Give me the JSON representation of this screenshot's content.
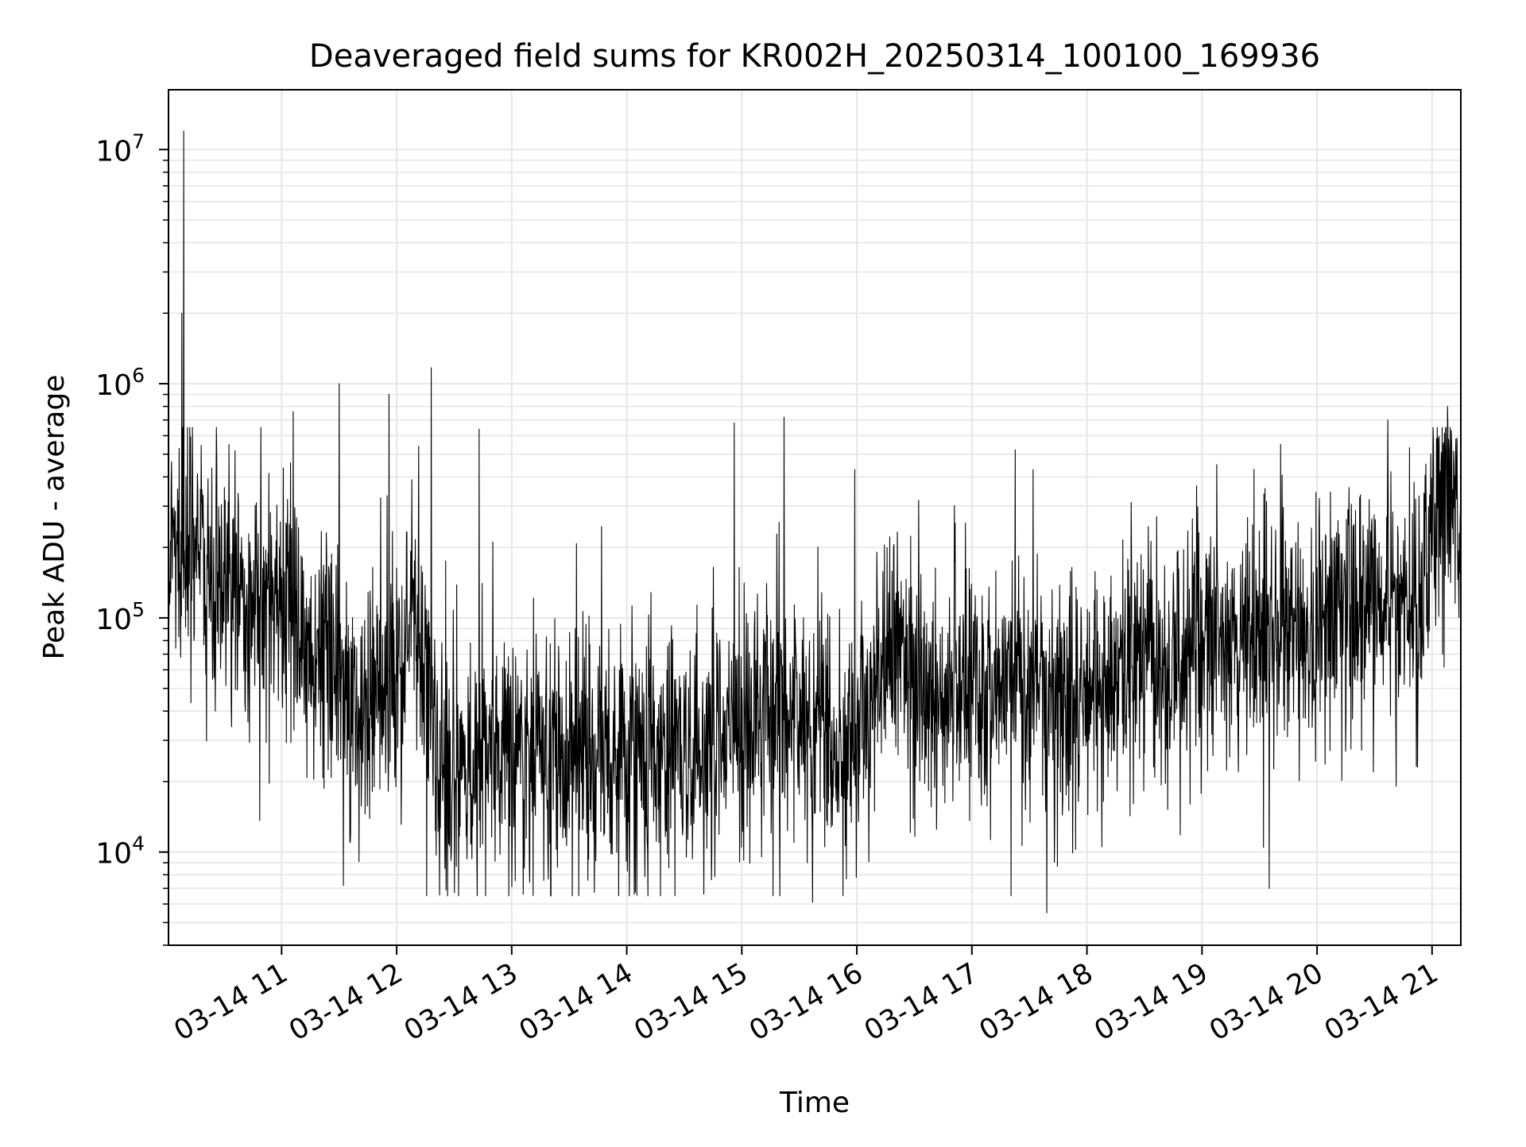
{
  "chart_data": {
    "type": "line",
    "title": "Deaveraged field sums for KR002H_20250314_100100_169936",
    "xlabel": "Time",
    "ylabel": "Peak ADU - average",
    "yscale": "log",
    "ylim": [
      4000,
      18000000
    ],
    "xlim": [
      "03-14 10:01",
      "03-14 21:15"
    ],
    "grid": true,
    "line_color": "#000000",
    "grid_color": "#e6e6e6",
    "x_ticks": [
      {
        "t": "03-14 11:00",
        "label": "03-14 11"
      },
      {
        "t": "03-14 12:00",
        "label": "03-14 12"
      },
      {
        "t": "03-14 13:00",
        "label": "03-14 13"
      },
      {
        "t": "03-14 14:00",
        "label": "03-14 14"
      },
      {
        "t": "03-14 15:00",
        "label": "03-14 15"
      },
      {
        "t": "03-14 16:00",
        "label": "03-14 16"
      },
      {
        "t": "03-14 17:00",
        "label": "03-14 17"
      },
      {
        "t": "03-14 18:00",
        "label": "03-14 18"
      },
      {
        "t": "03-14 19:00",
        "label": "03-14 19"
      },
      {
        "t": "03-14 20:00",
        "label": "03-14 20"
      },
      {
        "t": "03-14 21:00",
        "label": "03-14 21"
      }
    ],
    "y_ticks": [
      {
        "value": 10000,
        "base": "10",
        "exp": "4"
      },
      {
        "value": 100000,
        "base": "10",
        "exp": "5"
      },
      {
        "value": 1000000,
        "base": "10",
        "exp": "6"
      },
      {
        "value": 10000000,
        "base": "10",
        "exp": "7"
      }
    ],
    "baseline_series": {
      "x": [
        "03-14 10:01",
        "03-14 10:20",
        "03-14 10:40",
        "03-14 11:00",
        "03-14 11:20",
        "03-14 11:40",
        "03-14 12:00",
        "03-14 12:10",
        "03-14 12:20",
        "03-14 12:30",
        "03-14 13:00",
        "03-14 13:30",
        "03-14 14:00",
        "03-14 14:30",
        "03-14 15:00",
        "03-14 15:30",
        "03-14 16:00",
        "03-14 16:20",
        "03-14 16:40",
        "03-14 17:00",
        "03-14 17:30",
        "03-14 18:00",
        "03-14 18:30",
        "03-14 19:00",
        "03-14 19:30",
        "03-14 20:00",
        "03-14 20:30",
        "03-14 20:55",
        "03-14 21:00",
        "03-14 21:15"
      ],
      "y": [
        210000,
        160000,
        110000,
        100000,
        80000,
        40000,
        60000,
        110000,
        25000,
        25000,
        30000,
        25000,
        25000,
        28000,
        35000,
        35000,
        25000,
        80000,
        50000,
        45000,
        55000,
        50000,
        60000,
        70000,
        85000,
        100000,
        110000,
        110000,
        320000,
        330000
      ]
    },
    "spikes": [
      {
        "t": "03-14 10:09",
        "y": 12000000
      },
      {
        "t": "03-14 10:08",
        "y": 2000000
      },
      {
        "t": "03-14 11:56",
        "y": 900000
      },
      {
        "t": "03-14 11:06",
        "y": 760000
      },
      {
        "t": "03-14 11:30",
        "y": 1000000
      },
      {
        "t": "03-14 12:18",
        "y": 1170000
      },
      {
        "t": "03-14 12:43",
        "y": 640000
      },
      {
        "t": "03-14 14:56",
        "y": 680000
      },
      {
        "t": "03-14 15:22",
        "y": 720000
      },
      {
        "t": "03-14 15:59",
        "y": 430000
      },
      {
        "t": "03-14 17:32",
        "y": 430000
      },
      {
        "t": "03-14 19:41",
        "y": 550000
      },
      {
        "t": "03-14 20:37",
        "y": 700000
      },
      {
        "t": "03-14 21:08",
        "y": 800000
      }
    ],
    "dips": [
      {
        "t": "03-14 17:39",
        "y": 5500
      },
      {
        "t": "03-14 15:37",
        "y": 6100
      },
      {
        "t": "03-14 13:35",
        "y": 6500
      },
      {
        "t": "03-14 13:06",
        "y": 6600
      },
      {
        "t": "03-14 14:04",
        "y": 6600
      }
    ]
  }
}
